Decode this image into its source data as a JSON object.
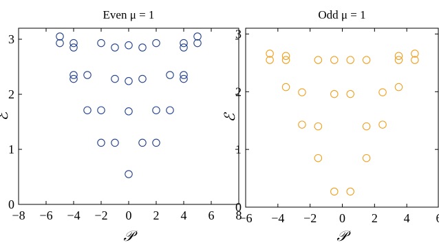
{
  "chart_data": [
    {
      "type": "scatter",
      "title": "Even μ = 1",
      "xlabel": "𝒫",
      "ylabel": "ℰ",
      "xlim": [
        -8,
        8
      ],
      "ylim": [
        0,
        3.2
      ],
      "xticks": [
        -8,
        -6,
        -4,
        -2,
        0,
        2,
        4,
        6,
        8
      ],
      "xtick_labels": [
        "−8",
        "−6",
        "−4",
        "−2",
        "0",
        "2",
        "4",
        "6",
        "8"
      ],
      "yticks": [
        0,
        1,
        2,
        3
      ],
      "ytick_labels": [
        "0",
        "1",
        "2",
        "3"
      ],
      "grid": false,
      "marker": "open-circle",
      "color": "#1f3f8f",
      "x": [
        0,
        -2,
        -1,
        1,
        2,
        -3,
        -2,
        0,
        2,
        3,
        -4,
        -4,
        -3,
        -1,
        0,
        1,
        3,
        4,
        4,
        -5,
        -5,
        -4,
        -4,
        -2,
        -1,
        0,
        1,
        2,
        4,
        4,
        5,
        5
      ],
      "y": [
        0.55,
        1.12,
        1.12,
        1.12,
        1.12,
        1.71,
        1.71,
        1.69,
        1.71,
        1.71,
        2.35,
        2.28,
        2.35,
        2.28,
        2.24,
        2.28,
        2.35,
        2.28,
        2.35,
        3.05,
        2.93,
        2.93,
        2.85,
        2.93,
        2.85,
        2.89,
        2.85,
        2.93,
        2.85,
        2.93,
        2.93,
        3.05
      ]
    },
    {
      "type": "scatter",
      "title": "Odd μ = 1",
      "xlabel": "𝒫",
      "ylabel": "ℰ",
      "xlim": [
        -6,
        6
      ],
      "ylim": [
        0,
        3.1
      ],
      "xticks": [
        -6,
        -4,
        -2,
        0,
        2,
        4,
        6
      ],
      "xtick_labels": [
        "−6",
        "−4",
        "−2",
        "0",
        "2",
        "4",
        "6"
      ],
      "yticks": [
        0,
        1,
        2,
        3
      ],
      "ytick_labels": [
        "0",
        "1",
        "2",
        "3"
      ],
      "grid": false,
      "marker": "open-circle",
      "color": "#f0a020",
      "x": [
        -0.5,
        0.5,
        -1.5,
        1.5,
        -2.5,
        -1.5,
        1.5,
        2.5,
        -3.5,
        -2.5,
        -0.5,
        0.5,
        2.5,
        3.5,
        -4.5,
        -4.5,
        -3.5,
        -3.5,
        -1.5,
        -0.5,
        0.5,
        1.5,
        3.5,
        3.5,
        4.5,
        4.5
      ],
      "y": [
        0.27,
        0.27,
        0.85,
        0.85,
        1.43,
        1.4,
        1.4,
        1.43,
        2.08,
        1.99,
        1.96,
        1.96,
        1.99,
        2.08,
        2.66,
        2.55,
        2.62,
        2.55,
        2.55,
        2.55,
        2.55,
        2.55,
        2.62,
        2.55,
        2.66,
        2.55
      ]
    }
  ]
}
